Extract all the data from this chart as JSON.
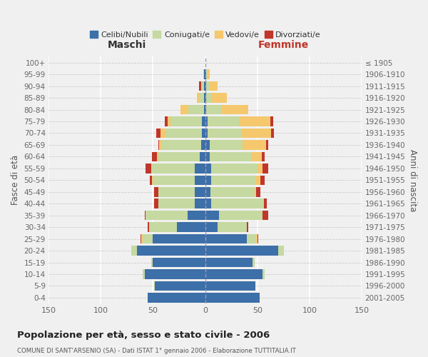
{
  "age_groups": [
    "0-4",
    "5-9",
    "10-14",
    "15-19",
    "20-24",
    "25-29",
    "30-34",
    "35-39",
    "40-44",
    "45-49",
    "50-54",
    "55-59",
    "60-64",
    "65-69",
    "70-74",
    "75-79",
    "80-84",
    "85-89",
    "90-94",
    "95-99",
    "100+"
  ],
  "birth_years": [
    "2001-2005",
    "1996-2000",
    "1991-1995",
    "1986-1990",
    "1981-1985",
    "1976-1980",
    "1971-1975",
    "1966-1970",
    "1961-1965",
    "1956-1960",
    "1951-1955",
    "1946-1950",
    "1941-1945",
    "1936-1940",
    "1931-1935",
    "1926-1930",
    "1921-1925",
    "1916-1920",
    "1911-1915",
    "1906-1910",
    "≤ 1905"
  ],
  "males": {
    "celibi": [
      55,
      48,
      58,
      50,
      65,
      50,
      27,
      17,
      10,
      10,
      10,
      10,
      5,
      4,
      3,
      3,
      1,
      1,
      1,
      1,
      0
    ],
    "coniugati": [
      0,
      1,
      2,
      2,
      6,
      10,
      27,
      40,
      35,
      35,
      40,
      42,
      40,
      38,
      35,
      30,
      15,
      4,
      2,
      1,
      0
    ],
    "vedovi": [
      0,
      0,
      0,
      0,
      0,
      1,
      0,
      0,
      0,
      0,
      1,
      0,
      1,
      2,
      5,
      3,
      8,
      3,
      1,
      0,
      0
    ],
    "divorziati": [
      0,
      0,
      0,
      0,
      0,
      1,
      1,
      1,
      4,
      4,
      2,
      5,
      5,
      1,
      4,
      3,
      0,
      0,
      2,
      0,
      0
    ]
  },
  "females": {
    "nubili": [
      52,
      48,
      55,
      45,
      70,
      40,
      12,
      13,
      6,
      5,
      6,
      6,
      4,
      4,
      2,
      2,
      1,
      1,
      1,
      1,
      0
    ],
    "coniugate": [
      0,
      0,
      2,
      2,
      5,
      9,
      28,
      42,
      50,
      42,
      42,
      44,
      40,
      32,
      33,
      30,
      15,
      5,
      3,
      1,
      0
    ],
    "vedove": [
      0,
      0,
      0,
      0,
      0,
      1,
      0,
      0,
      0,
      2,
      5,
      5,
      10,
      22,
      28,
      30,
      25,
      15,
      8,
      2,
      0
    ],
    "divorziate": [
      0,
      0,
      0,
      0,
      0,
      1,
      1,
      5,
      3,
      4,
      4,
      5,
      3,
      2,
      3,
      3,
      0,
      0,
      0,
      0,
      0
    ]
  },
  "colors": {
    "celibi": "#3d6fa8",
    "coniugati": "#c5d9a0",
    "vedovi": "#f5c86e",
    "divorziati": "#c0362a"
  },
  "xlim": 150,
  "title": "Popolazione per età, sesso e stato civile - 2006",
  "subtitle": "COMUNE DI SANT'ARSENIO (SA) - Dati ISTAT 1° gennaio 2006 - Elaborazione TUTTITALIA.IT",
  "xlabel_left": "Maschi",
  "xlabel_right": "Femmine",
  "ylabel_left": "Fasce di età",
  "ylabel_right": "Anni di nascita",
  "legend_labels": [
    "Celibi/Nubili",
    "Coniugati/e",
    "Vedovi/e",
    "Divorziati/e"
  ],
  "bg_color": "#f0f0f0"
}
